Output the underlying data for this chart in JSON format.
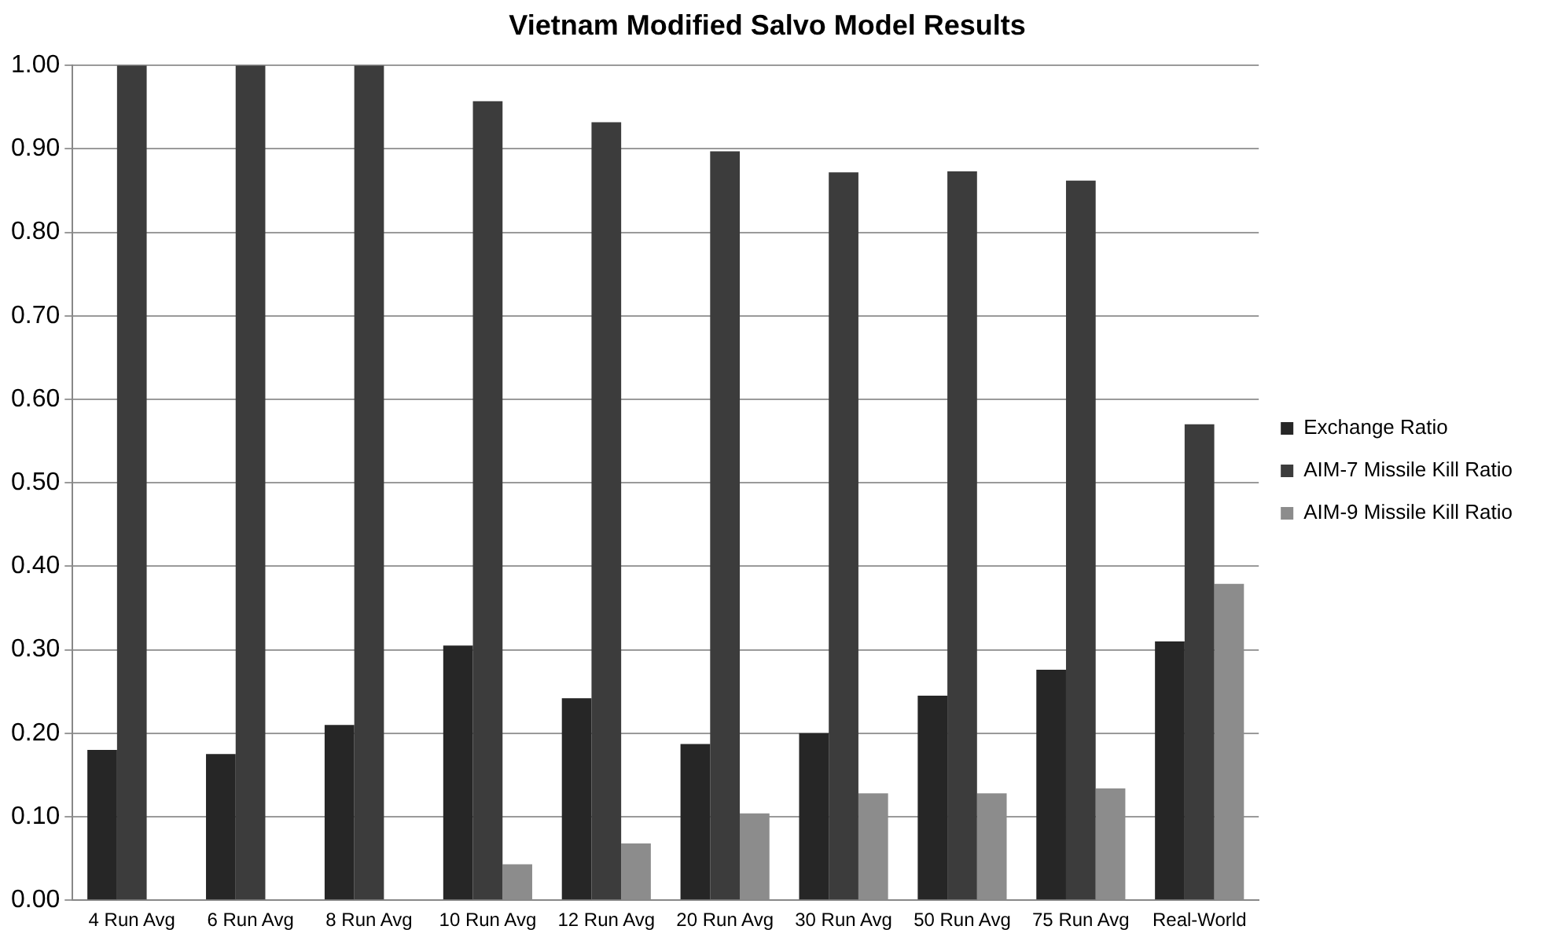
{
  "chart_data": {
    "type": "bar",
    "title": "Vietnam Modified Salvo Model Results",
    "categories": [
      "4 Run Avg",
      "6 Run Avg",
      "8 Run Avg",
      "10 Run Avg",
      "12 Run Avg",
      "20 Run Avg",
      "30 Run Avg",
      "50 Run Avg",
      "75 Run Avg",
      "Real-World"
    ],
    "series": [
      {
        "name": "Exchange Ratio",
        "color": "#262626",
        "values": [
          0.18,
          0.175,
          0.21,
          0.305,
          0.242,
          0.187,
          0.2,
          0.245,
          0.276,
          0.31
        ]
      },
      {
        "name": "AIM-7 Missile Kill Ratio",
        "color": "#3c3c3c",
        "values": [
          1,
          1,
          1,
          0.957,
          0.932,
          0.897,
          0.872,
          0.873,
          0.862,
          0.57
        ]
      },
      {
        "name": "AIM-9 Missile Kill Ratio",
        "color": "#8c8c8c",
        "values": [
          null,
          null,
          null,
          0.043,
          0.068,
          0.104,
          0.128,
          0.128,
          0.134,
          0.379
        ]
      }
    ],
    "ylim": [
      0,
      1
    ],
    "yticks": [
      {
        "value": 0,
        "label": "0.00"
      },
      {
        "value": 0.1,
        "label": "0.10"
      },
      {
        "value": 0.2,
        "label": "0.20"
      },
      {
        "value": 0.3,
        "label": "0.30"
      },
      {
        "value": 0.4,
        "label": "0.40"
      },
      {
        "value": 0.5,
        "label": "0.50"
      },
      {
        "value": 0.6,
        "label": "0.60"
      },
      {
        "value": 0.7,
        "label": "0.70"
      },
      {
        "value": 0.8,
        "label": "0.80"
      },
      {
        "value": 0.9,
        "label": "0.90"
      },
      {
        "value": 1,
        "label": "1.00"
      }
    ],
    "grid": "y",
    "legend": "right"
  }
}
